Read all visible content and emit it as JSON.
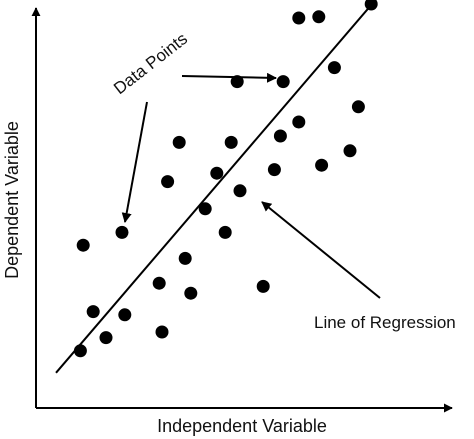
{
  "chart_data": {
    "type": "scatter",
    "title": "",
    "xlabel": "Independent Variable",
    "ylabel": "Dependent Variable",
    "grid": false,
    "legend": "none",
    "ticks": false,
    "colors": {
      "points": "#000000",
      "axes": "#000000",
      "text": "#111111"
    },
    "xlim": [
      0,
      100
    ],
    "ylim": [
      0,
      100
    ],
    "points": [
      {
        "x": 11.1,
        "y": 14.3
      },
      {
        "x": 14.3,
        "y": 24.1
      },
      {
        "x": 17.5,
        "y": 17.6
      },
      {
        "x": 22.2,
        "y": 23.3
      },
      {
        "x": 31.5,
        "y": 19.0
      },
      {
        "x": 30.8,
        "y": 31.2
      },
      {
        "x": 37.3,
        "y": 37.4
      },
      {
        "x": 38.7,
        "y": 28.7
      },
      {
        "x": 11.8,
        "y": 40.7
      },
      {
        "x": 21.5,
        "y": 43.9
      },
      {
        "x": 32.9,
        "y": 56.6
      },
      {
        "x": 35.8,
        "y": 66.4
      },
      {
        "x": 42.3,
        "y": 49.8
      },
      {
        "x": 45.2,
        "y": 58.7
      },
      {
        "x": 47.3,
        "y": 43.9
      },
      {
        "x": 48.8,
        "y": 66.4
      },
      {
        "x": 51.0,
        "y": 54.3
      },
      {
        "x": 50.3,
        "y": 81.6
      },
      {
        "x": 56.8,
        "y": 30.4
      },
      {
        "x": 59.6,
        "y": 59.6
      },
      {
        "x": 61.1,
        "y": 68.0
      },
      {
        "x": 61.8,
        "y": 81.6
      },
      {
        "x": 65.7,
        "y": 71.5
      },
      {
        "x": 65.7,
        "y": 97.5
      },
      {
        "x": 70.7,
        "y": 97.8
      },
      {
        "x": 71.4,
        "y": 60.7
      },
      {
        "x": 74.6,
        "y": 85.1
      },
      {
        "x": 78.5,
        "y": 64.3
      },
      {
        "x": 80.6,
        "y": 75.3
      },
      {
        "x": 83.8,
        "y": 101.0
      }
    ],
    "regression_line": {
      "x": [
        5.0,
        85.3
      ],
      "y": [
        8.8,
        102.5
      ]
    },
    "annotations": [
      {
        "text": "Data Points",
        "target": "points"
      },
      {
        "text": "Line of Regression",
        "target": "regression-line"
      }
    ]
  }
}
